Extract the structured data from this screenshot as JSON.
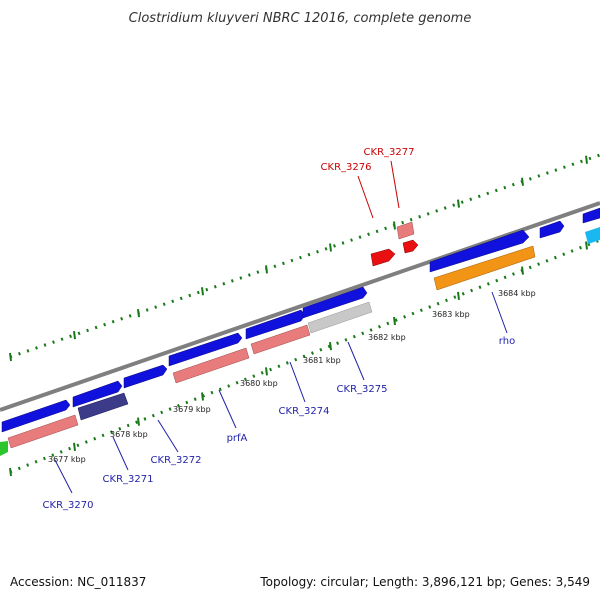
{
  "title": "Clostridium kluyveri NBRC 12016, complete genome",
  "footer": {
    "accession": "Accession: NC_011837",
    "topology": "Topology: circular; Length: 3,896,121 bp; Genes: 3,549"
  },
  "colors": {
    "background": "#ffffff",
    "backbone": "#7f7f7f",
    "dots": "#1a7a1a",
    "gene_blue": "#1111dd",
    "gene_pink": "#e87c7c",
    "gene_navy": "#3b3b8a",
    "gene_gray": "#c8c8c8",
    "gene_orange": "#f29416",
    "gene_red": "#e81010",
    "gene_cyan": "#1ab8f0",
    "gene_green": "#2cc62c",
    "label_blue": "#2222aa",
    "label_red": "#cc0000"
  },
  "ticks": [
    {
      "label": "3677 kbp"
    },
    {
      "label": "3678 kbp"
    },
    {
      "label": "3679 kbp"
    },
    {
      "label": "3680 kbp"
    },
    {
      "label": "3681 kbp"
    },
    {
      "label": "3682 kbp"
    },
    {
      "label": "3683 kbp"
    },
    {
      "label": "3684 kbp"
    }
  ],
  "gene_labels": [
    {
      "name": "CKR_3270",
      "color": "blue"
    },
    {
      "name": "CKR_3271",
      "color": "blue"
    },
    {
      "name": "CKR_3272",
      "color": "blue"
    },
    {
      "name": "prfA",
      "color": "blue"
    },
    {
      "name": "CKR_3274",
      "color": "blue"
    },
    {
      "name": "CKR_3275",
      "color": "blue"
    },
    {
      "name": "rho",
      "color": "blue"
    },
    {
      "name": "CKR_3276",
      "color": "red"
    },
    {
      "name": "CKR_3277",
      "color": "red"
    }
  ]
}
